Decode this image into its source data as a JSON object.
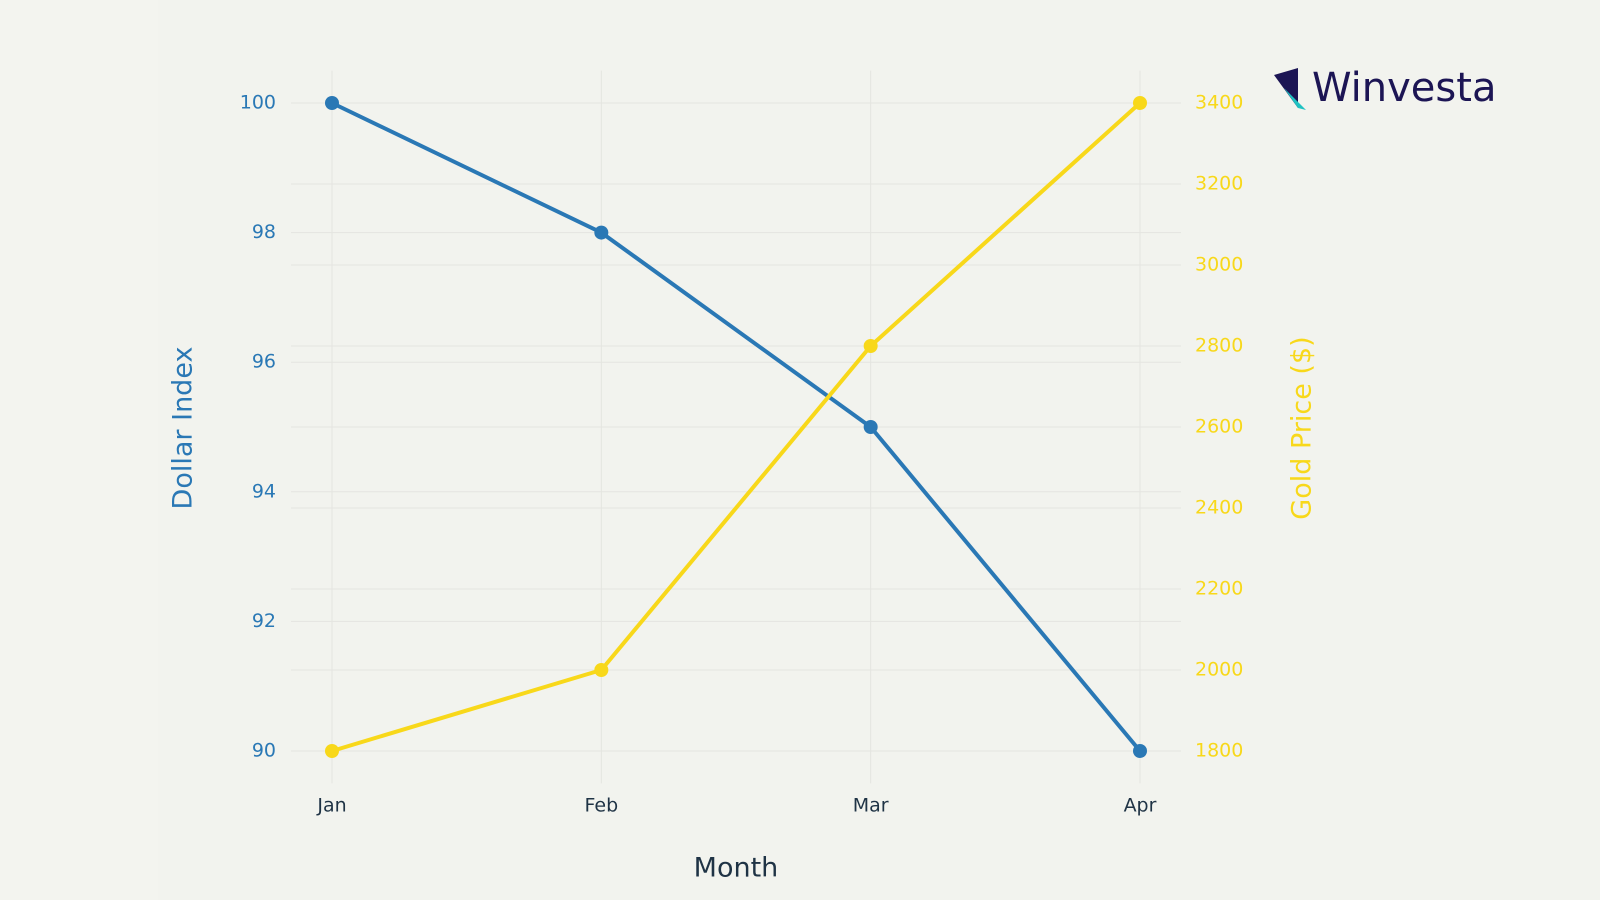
{
  "chart_data": {
    "type": "line",
    "logo": "Winvesta",
    "x_label": "Month",
    "y_label": "Dollar Index",
    "y2_label": "Gold Price ($)",
    "categories": [
      "Jan",
      "Feb",
      "Mar",
      "Apr"
    ],
    "series": [
      {
        "name": "Dollar Index",
        "color": "#2a78b5",
        "values": [
          100,
          98,
          95,
          90
        ]
      },
      {
        "name": "Gold Price ($)",
        "color": "#f8d81a",
        "axis": "y2",
        "values": [
          1800,
          2000,
          2800,
          3400
        ]
      }
    ],
    "ylim": [
      89.5,
      100.5
    ],
    "yticks": [
      90,
      92,
      94,
      96,
      98,
      100
    ],
    "y2lim": [
      1720,
      3480
    ],
    "y2ticks": [
      1800,
      2000,
      2200,
      2400,
      2600,
      2800,
      3000,
      3200,
      3400
    ],
    "grid": true
  }
}
